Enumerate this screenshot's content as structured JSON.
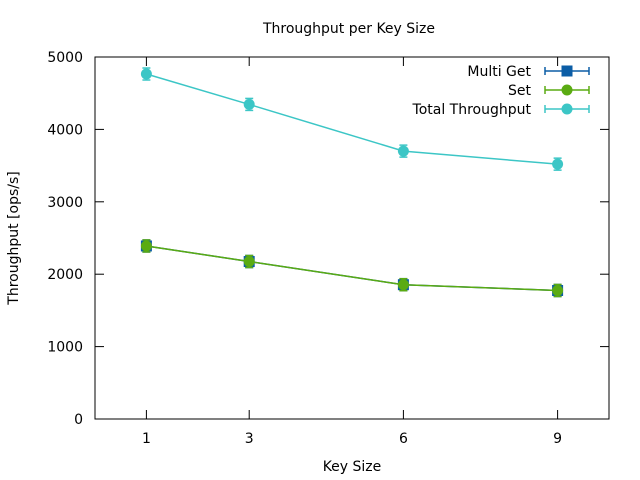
{
  "chart_data": {
    "type": "line",
    "title": "Throughput per Key Size",
    "xlabel": "Key Size",
    "ylabel": "Throughput [ops/s]",
    "x": [
      1,
      3,
      6,
      9
    ],
    "x_tick_labels": [
      "1",
      "3",
      "6",
      "9"
    ],
    "xlim": [
      0,
      10
    ],
    "ylim": [
      0,
      5000
    ],
    "y_ticks": [
      0,
      1000,
      2000,
      3000,
      4000,
      5000
    ],
    "y_tick_labels": [
      "0",
      "1000",
      "2000",
      "3000",
      "4000",
      "5000"
    ],
    "grid": false,
    "legend_position": "top-right",
    "series": [
      {
        "name": "Multi Get",
        "color": "#0b5da6",
        "marker": "square",
        "values": [
          2390,
          2175,
          1855,
          1775
        ]
      },
      {
        "name": "Set",
        "color": "#5aab12",
        "marker": "circle",
        "values": [
          2390,
          2175,
          1855,
          1775
        ]
      },
      {
        "name": "Total Throughput",
        "color": "#3cc6c6",
        "marker": "circle",
        "values": [
          4765,
          4345,
          3700,
          3520
        ]
      }
    ]
  }
}
